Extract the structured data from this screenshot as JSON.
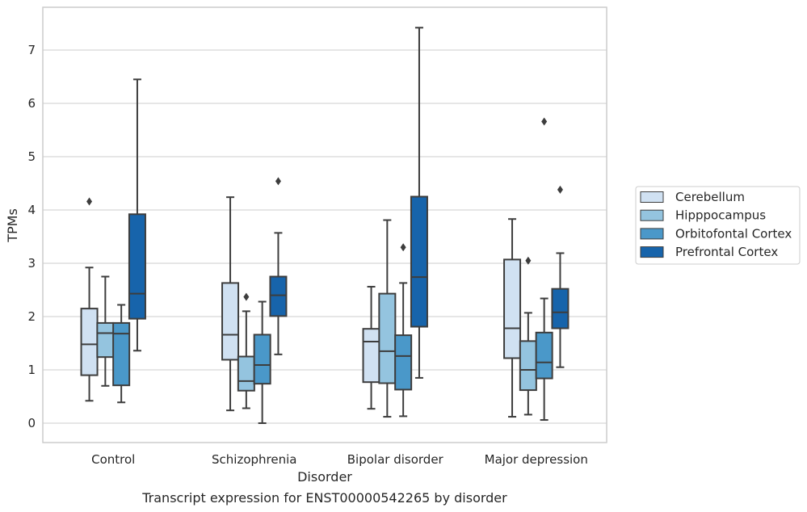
{
  "chart_data": {
    "type": "box",
    "xlabel": "Disorder",
    "ylabel": "TPMs",
    "caption": "Transcript expression for ENST00000542265 by disorder",
    "ylim": [
      -0.35,
      7.8
    ],
    "yticks": [
      0,
      1,
      2,
      3,
      4,
      5,
      6,
      7
    ],
    "grid": "horizontal",
    "legend_position": "right",
    "categories": [
      "Control",
      "Schizophrenia",
      "Bipolar disorder",
      "Major depression"
    ],
    "series": [
      {
        "name": "Cerebellum",
        "color": "#d0e1f2",
        "boxes": [
          {
            "whislo": 0.42,
            "q1": 0.9,
            "med": 1.48,
            "q3": 2.15,
            "whishi": 2.92,
            "fliers": [
              4.16
            ]
          },
          {
            "whislo": 0.24,
            "q1": 1.19,
            "med": 1.66,
            "q3": 2.63,
            "whishi": 4.24,
            "fliers": []
          },
          {
            "whislo": 0.27,
            "q1": 0.77,
            "med": 1.53,
            "q3": 1.77,
            "whishi": 2.56,
            "fliers": []
          },
          {
            "whislo": 0.12,
            "q1": 1.22,
            "med": 1.78,
            "q3": 3.07,
            "whishi": 3.83,
            "fliers": []
          }
        ]
      },
      {
        "name": "Hipppocampus",
        "color": "#94c4df",
        "boxes": [
          {
            "whislo": 0.7,
            "q1": 1.24,
            "med": 1.69,
            "q3": 1.88,
            "whishi": 2.75,
            "fliers": []
          },
          {
            "whislo": 0.28,
            "q1": 0.61,
            "med": 0.79,
            "q3": 1.25,
            "whishi": 2.1,
            "fliers": [
              2.37
            ]
          },
          {
            "whislo": 0.12,
            "q1": 0.75,
            "med": 1.35,
            "q3": 2.43,
            "whishi": 3.81,
            "fliers": []
          },
          {
            "whislo": 0.16,
            "q1": 0.62,
            "med": 1.0,
            "q3": 1.54,
            "whishi": 2.07,
            "fliers": [
              3.05
            ]
          }
        ]
      },
      {
        "name": "Orbitofontal Cortex",
        "color": "#4a98c9",
        "boxes": [
          {
            "whislo": 0.39,
            "q1": 0.71,
            "med": 1.68,
            "q3": 1.88,
            "whishi": 2.22,
            "fliers": []
          },
          {
            "whislo": 0.0,
            "q1": 0.74,
            "med": 1.09,
            "q3": 1.66,
            "whishi": 2.28,
            "fliers": []
          },
          {
            "whislo": 0.13,
            "q1": 0.63,
            "med": 1.26,
            "q3": 1.65,
            "whishi": 2.63,
            "fliers": [
              3.3
            ]
          },
          {
            "whislo": 0.06,
            "q1": 0.84,
            "med": 1.14,
            "q3": 1.7,
            "whishi": 2.34,
            "fliers": [
              5.66
            ]
          }
        ]
      },
      {
        "name": "Prefrontal Cortex",
        "color": "#1764ab",
        "boxes": [
          {
            "whislo": 1.36,
            "q1": 1.96,
            "med": 2.43,
            "q3": 3.92,
            "whishi": 6.45,
            "fliers": []
          },
          {
            "whislo": 1.29,
            "q1": 2.01,
            "med": 2.4,
            "q3": 2.75,
            "whishi": 3.57,
            "fliers": [
              4.54
            ]
          },
          {
            "whislo": 0.85,
            "q1": 1.81,
            "med": 2.74,
            "q3": 4.25,
            "whishi": 7.42,
            "fliers": []
          },
          {
            "whislo": 1.05,
            "q1": 1.78,
            "med": 2.08,
            "q3": 2.52,
            "whishi": 3.19,
            "fliers": [
              4.38
            ]
          }
        ]
      }
    ]
  }
}
